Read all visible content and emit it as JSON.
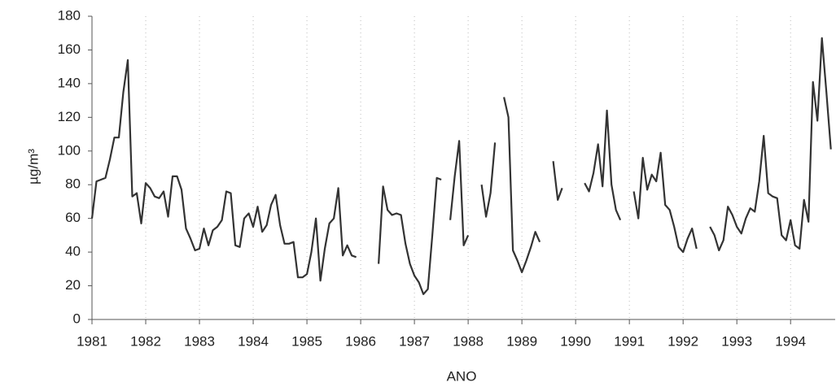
{
  "chart_data": {
    "type": "line",
    "x_label": "ANO",
    "y_label": "µg/m³",
    "x": [
      1981,
      1981.083,
      1981.167,
      1981.25,
      1981.333,
      1981.417,
      1981.5,
      1981.583,
      1981.667,
      1981.75,
      1981.833,
      1981.917,
      1982,
      1982.083,
      1982.167,
      1982.25,
      1982.333,
      1982.417,
      1982.5,
      1982.583,
      1982.667,
      1982.75,
      1982.833,
      1982.917,
      1983,
      1983.083,
      1983.167,
      1983.25,
      1983.333,
      1983.417,
      1983.5,
      1983.583,
      1983.667,
      1983.75,
      1983.833,
      1983.917,
      1984,
      1984.083,
      1984.167,
      1984.25,
      1984.333,
      1984.417,
      1984.5,
      1984.583,
      1984.667,
      1984.75,
      1984.833,
      1984.917,
      1985,
      1985.083,
      1985.167,
      1985.25,
      1985.333,
      1985.417,
      1985.5,
      1985.583,
      1985.667,
      1985.75,
      1985.833,
      1985.917,
      1986,
      1986.083,
      1986.167,
      1986.25,
      1986.333,
      1986.417,
      1986.5,
      1986.583,
      1986.667,
      1986.75,
      1986.833,
      1986.917,
      1987,
      1987.083,
      1987.167,
      1987.25,
      1987.333,
      1987.417,
      1987.5,
      1987.583,
      1987.667,
      1987.75,
      1987.833,
      1987.917,
      1988,
      1988.083,
      1988.167,
      1988.25,
      1988.333,
      1988.417,
      1988.5,
      1988.583,
      1988.667,
      1988.75,
      1988.833,
      1988.917,
      1989,
      1989.083,
      1989.167,
      1989.25,
      1989.333,
      1989.417,
      1989.5,
      1989.583,
      1989.667,
      1989.75,
      1989.833,
      1989.917,
      1990,
      1990.083,
      1990.167,
      1990.25,
      1990.333,
      1990.417,
      1990.5,
      1990.583,
      1990.667,
      1990.75,
      1990.833,
      1990.917,
      1991,
      1991.083,
      1991.167,
      1991.25,
      1991.333,
      1991.417,
      1991.5,
      1991.583,
      1991.667,
      1991.75,
      1991.833,
      1991.917,
      1992,
      1992.083,
      1992.167,
      1992.25,
      1992.333,
      1992.417,
      1992.5,
      1992.583,
      1992.667,
      1992.75,
      1992.833,
      1992.917,
      1993,
      1993.083,
      1993.167,
      1993.25,
      1993.333,
      1993.417,
      1993.5,
      1993.583,
      1993.667,
      1993.75,
      1993.833,
      1993.917,
      1994,
      1994.083,
      1994.167,
      1994.25,
      1994.333,
      1994.417,
      1994.5,
      1994.583,
      1994.667,
      1994.75
    ],
    "series": [
      {
        "color": "#333333",
        "values": [
          60,
          82,
          83,
          84,
          95,
          108,
          108,
          135,
          154,
          73,
          75,
          57,
          81,
          78,
          73,
          72,
          76,
          61,
          85,
          85,
          77,
          54,
          48,
          41,
          42,
          54,
          44,
          53,
          55,
          59,
          76,
          75,
          44,
          43,
          60,
          63,
          55,
          67,
          52,
          56,
          68,
          74,
          56,
          45,
          45,
          46,
          25,
          25,
          27,
          40,
          60,
          23,
          42,
          57,
          60,
          78,
          38,
          44,
          38,
          37,
          null,
          null,
          null,
          null,
          33,
          79,
          65,
          62,
          63,
          62,
          45,
          33,
          26,
          22,
          15,
          18,
          50,
          84,
          83,
          null,
          59,
          85,
          106,
          44,
          50,
          null,
          null,
          80,
          61,
          75,
          105,
          null,
          132,
          120,
          41,
          35,
          28,
          35,
          43,
          52,
          46,
          null,
          null,
          94,
          71,
          78,
          null,
          null,
          null,
          null,
          81,
          76,
          87,
          104,
          79,
          124,
          80,
          65,
          59,
          null,
          null,
          76,
          60,
          96,
          77,
          86,
          82,
          99,
          68,
          65,
          55,
          43,
          40,
          48,
          54,
          42,
          null,
          null,
          55,
          50,
          41,
          47,
          67,
          62,
          55,
          51,
          60,
          66,
          64,
          82,
          109,
          75,
          73,
          72,
          50,
          47,
          59,
          44,
          42,
          71,
          58,
          141,
          118,
          167,
          135,
          101
        ]
      }
    ],
    "xlim": [
      1981,
      1994.83
    ],
    "xticks": [
      1981,
      1982,
      1983,
      1984,
      1985,
      1986,
      1987,
      1988,
      1989,
      1990,
      1991,
      1992,
      1993,
      1994
    ],
    "ylim": [
      0,
      180
    ],
    "yticks": [
      0,
      20,
      40,
      60,
      80,
      100,
      120,
      140,
      160,
      180
    ],
    "x_grid": true
  }
}
